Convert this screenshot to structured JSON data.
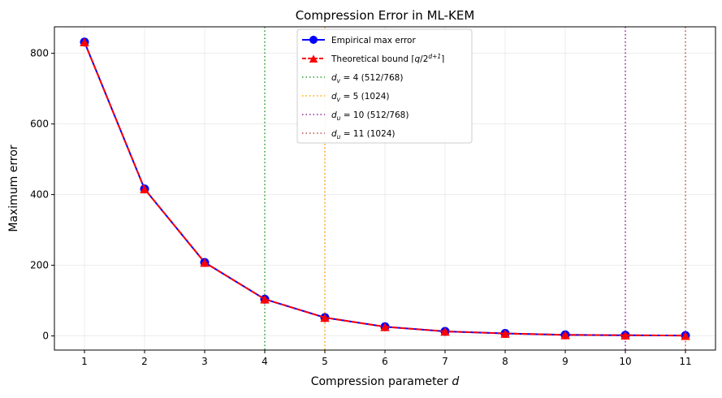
{
  "chart_data": {
    "type": "line",
    "title": "Compression Error in ML-KEM",
    "xlabel_main": "Compression parameter ",
    "xlabel_var": "d",
    "ylabel": "Maximum error",
    "x": [
      1,
      2,
      3,
      4,
      5,
      6,
      7,
      8,
      9,
      10,
      11
    ],
    "xlim": [
      0.5,
      11.5
    ],
    "ylim": [
      -40,
      875
    ],
    "yticks": [
      0,
      200,
      400,
      600,
      800
    ],
    "grid": true,
    "legend_position": "top-center",
    "series": [
      {
        "name": "Empirical max error",
        "values": [
          832,
          416,
          208,
          104,
          52,
          26,
          13,
          7,
          3,
          2,
          1
        ],
        "color": "#0000ff",
        "marker": "circle",
        "linestyle": "solid"
      },
      {
        "name": "Theoretical bound",
        "values": [
          832,
          416,
          208,
          104,
          52,
          26,
          13,
          7,
          3,
          2,
          1
        ],
        "color": "#ff0000",
        "marker": "triangle",
        "linestyle": "dashed"
      }
    ],
    "vlines": [
      {
        "x": 4,
        "color": "#2ca02c",
        "sym": "v",
        "label": " = 4 (512/768)"
      },
      {
        "x": 5,
        "color": "#ffa500",
        "sym": "v",
        "label": " = 5 (1024)"
      },
      {
        "x": 10,
        "color": "#9b209b",
        "sym": "u",
        "label": " = 10 (512/768)"
      },
      {
        "x": 11,
        "color": "#c0504d",
        "sym": "u",
        "label": " = 11 (1024)"
      }
    ]
  }
}
